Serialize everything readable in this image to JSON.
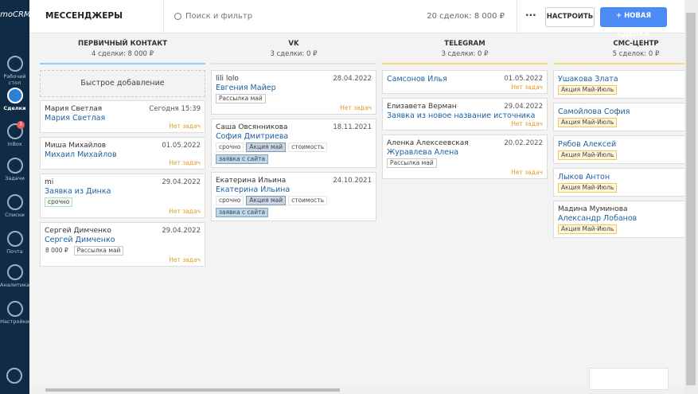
{
  "sidebar": {
    "logo": "amoCRM",
    "items": [
      {
        "label": "Рабочий стол"
      },
      {
        "label": "Сделки",
        "active": true
      },
      {
        "label": "InBox",
        "badge": 3
      },
      {
        "label": "Задачи"
      },
      {
        "label": "Списки"
      },
      {
        "label": "Почта"
      },
      {
        "label": "Аналитика"
      },
      {
        "label": "Настройки"
      }
    ]
  },
  "header": {
    "title": "МЕССЕНДЖЕРЫ",
    "search": "Поиск и фильтр",
    "summary": "20 сделок: 8 000 ₽",
    "more": "···",
    "configure": "НАСТРОИТЬ",
    "new_deal": "+ НОВАЯ СДЕЛКА"
  },
  "columns": [
    {
      "name": "ПЕРВИЧНЫЙ КОНТАКТ",
      "summary": "4 сделки: 8 000 ₽",
      "color": "#99ccf0",
      "quick_add": "Быстрое добавление",
      "cards": [
        {
          "contact": "Мария Светлая",
          "date": "Сегодня 15:39",
          "title": "Мария Светлая",
          "task": "Нет задач"
        },
        {
          "contact": "Миша Михайлов",
          "date": "01.05.2022",
          "title": "Михаил Михайлов",
          "task": "Нет задач"
        },
        {
          "contact": "mi",
          "date": "29.04.2022",
          "title": "Заявка из Динка",
          "tags": [
            {
              "text": "срочно",
              "color": "#b5e0c3",
              "bg": "#f4fbf6"
            }
          ],
          "task": "Нет задач"
        },
        {
          "contact": "Сергей Димченко",
          "date": "29.04.2022",
          "title": "Сергей Димченко",
          "price": "8 000 ₽",
          "tags": [
            {
              "text": "Рассылка май",
              "color": "#c8c8c8",
              "bg": "#ffffff"
            }
          ],
          "task": "Нет задач"
        }
      ]
    },
    {
      "name": "VK",
      "summary": "3 сделки: 0 ₽",
      "color": "#e0e0e0",
      "cards": [
        {
          "contact": "lili lolo",
          "date": "28.04.2022",
          "title": "Евгения Майер",
          "tags": [
            {
              "text": "Рассылка май",
              "color": "#c8c8c8",
              "bg": "#ffffff"
            }
          ],
          "task": "Нет задач"
        },
        {
          "contact": "Саша Овсянникова",
          "date": "18.11.2021",
          "title": "София Дмитриева",
          "tags": [
            {
              "text": "срочно",
              "color": "#e6e6e6",
              "bg": "#ffffff"
            },
            {
              "text": "Акция май",
              "color": "#7a97b4",
              "bg": "#c9d6e3"
            },
            {
              "text": "стоимость",
              "color": "#e6e6e6",
              "bg": "#ffffff"
            },
            {
              "text": "заявка с сайта",
              "color": "#7aa5c6",
              "bg": "#bcd7ea"
            }
          ]
        },
        {
          "contact": "Екатерина Ильина",
          "date": "24.10.2021",
          "title": "Екатерина Ильина",
          "tags": [
            {
              "text": "срочно",
              "color": "#e6e6e6",
              "bg": "#ffffff"
            },
            {
              "text": "Акция май",
              "color": "#7a97b4",
              "bg": "#c9d6e3"
            },
            {
              "text": "стоимость",
              "color": "#e6e6e6",
              "bg": "#ffffff"
            },
            {
              "text": "заявка с сайта",
              "color": "#7aa5c6",
              "bg": "#bcd7ea"
            }
          ]
        }
      ]
    },
    {
      "name": "TELEGRAM",
      "summary": "3 сделки: 0 ₽",
      "color": "#f5d97a",
      "cards": [
        {
          "date": "01.05.2022",
          "title": "Самсонов Илья",
          "task": "Нет задач"
        },
        {
          "contact": "Елизавета Верман",
          "date": "29.04.2022",
          "title": "Заявка из новое название источника",
          "task": "Нет задач"
        },
        {
          "contact": "Аленка Алексеевская",
          "date": "20.02.2022",
          "title": "Журавлева Алена",
          "tags": [
            {
              "text": "Рассылка май",
              "color": "#c8c8c8",
              "bg": "#ffffff"
            }
          ],
          "task": "Нет задач"
        }
      ]
    },
    {
      "name": "СМС-ЦЕНТР",
      "summary": "5 сделок: 0 ₽",
      "color": "#f5d97a",
      "cards": [
        {
          "title": "Ушакова Злата",
          "tags": [
            {
              "text": "Акция Май-Июль",
              "color": "#f0c75a",
              "bg": "#fff6dc"
            }
          ]
        },
        {
          "title": "Самойлова София",
          "tags": [
            {
              "text": "Акция Май-Июль",
              "color": "#f0c75a",
              "bg": "#fff6dc"
            }
          ]
        },
        {
          "title": "Рябов Алексей",
          "tags": [
            {
              "text": "Акция Май-Июль",
              "color": "#f0c75a",
              "bg": "#fff6dc"
            }
          ]
        },
        {
          "title": "Лыков Антон",
          "tags": [
            {
              "text": "Акция Май-Июль",
              "color": "#f0c75a",
              "bg": "#fff6dc"
            }
          ]
        },
        {
          "contact": "Мадина Муминова",
          "title": "Александр Лобанов",
          "tags": [
            {
              "text": "Акция Май-Июль",
              "color": "#f0c75a",
              "bg": "#fff6dc"
            }
          ]
        }
      ]
    }
  ]
}
